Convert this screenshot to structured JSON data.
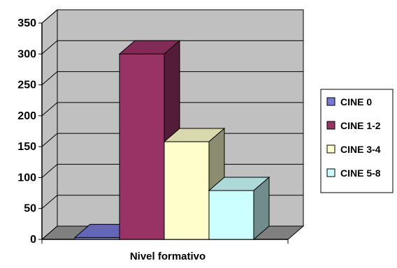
{
  "chart_data": {
    "type": "bar",
    "xlabel": "Nivel formativo",
    "ylabel": "",
    "title": "",
    "ylim": [
      0,
      350
    ],
    "y_ticks": [
      0,
      50,
      100,
      150,
      200,
      250,
      300,
      350
    ],
    "categories": [
      "Nivel formativo"
    ],
    "series": [
      {
        "name": "CINE 0",
        "values": [
          3
        ],
        "color": "#7878D8"
      },
      {
        "name": "CINE 1-2",
        "values": [
          300
        ],
        "color": "#993366"
      },
      {
        "name": "CINE 3-4",
        "values": [
          158
        ],
        "color": "#FFFFCC"
      },
      {
        "name": "CINE 5-8",
        "values": [
          79
        ],
        "color": "#CCFFFF"
      }
    ],
    "grid": true,
    "three_d": true,
    "legend_position": "right",
    "colors": {
      "wall": "#C0C0C0",
      "floor": "#808080",
      "gridline": "#000000"
    }
  }
}
